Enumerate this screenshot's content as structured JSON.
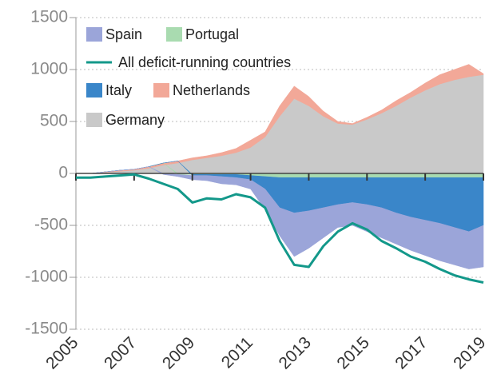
{
  "chart_data": {
    "type": "area",
    "x": [
      2005,
      2005.5,
      2006,
      2006.5,
      2007,
      2007.5,
      2008,
      2008.5,
      2009,
      2009.5,
      2010,
      2010.5,
      2011,
      2011.5,
      2012,
      2012.5,
      2013,
      2013.5,
      2014,
      2014.5,
      2015,
      2015.5,
      2016,
      2016.5,
      2017,
      2017.5,
      2018,
      2018.5,
      2019
    ],
    "series": [
      {
        "name": "Germany",
        "color": "#c9c9c9",
        "type": "area",
        "values": [
          0,
          0,
          10,
          20,
          30,
          50,
          80,
          100,
          130,
          150,
          170,
          200,
          250,
          350,
          550,
          720,
          650,
          550,
          480,
          470,
          520,
          580,
          650,
          730,
          800,
          860,
          900,
          930,
          950
        ]
      },
      {
        "name": "Netherlands",
        "color": "#f2a898",
        "type": "area",
        "values": [
          0,
          0,
          5,
          10,
          10,
          15,
          20,
          20,
          20,
          20,
          30,
          40,
          70,
          50,
          100,
          120,
          90,
          50,
          20,
          10,
          20,
          30,
          50,
          50,
          70,
          90,
          100,
          120,
          10
        ]
      },
      {
        "name": "Portugal",
        "color": "#a9dbb0",
        "type": "area",
        "values": [
          0,
          0,
          0,
          0,
          0,
          0,
          0,
          -10,
          -10,
          -10,
          -10,
          -10,
          -20,
          -30,
          -40,
          -40,
          -40,
          -40,
          -40,
          -40,
          -40,
          -40,
          -40,
          -40,
          -40,
          -40,
          -40,
          -40,
          -40
        ]
      },
      {
        "name": "Italy",
        "color": "#3a86c9",
        "type": "area",
        "values": [
          0,
          0,
          0,
          0,
          0,
          0,
          0,
          0,
          -10,
          -10,
          -20,
          -30,
          -40,
          -120,
          -290,
          -340,
          -320,
          -290,
          -260,
          -240,
          -260,
          -290,
          -340,
          -380,
          -410,
          -440,
          -480,
          -520,
          -460
        ]
      },
      {
        "name": "Spain",
        "color": "#9ba5d9",
        "type": "area",
        "values": [
          0,
          0,
          0,
          0,
          0,
          0,
          -10,
          -20,
          -40,
          -50,
          -70,
          -70,
          -90,
          -200,
          -270,
          -420,
          -360,
          -290,
          -220,
          -220,
          -260,
          -290,
          -300,
          -320,
          -340,
          -360,
          -360,
          -360,
          -400
        ]
      },
      {
        "name": "All deficit-running countries",
        "color": "#13988a",
        "type": "line",
        "values": [
          -40,
          -40,
          -30,
          -20,
          -10,
          -50,
          -100,
          -150,
          -280,
          -240,
          -250,
          -200,
          -230,
          -330,
          -650,
          -880,
          -900,
          -700,
          -560,
          -480,
          -540,
          -650,
          -720,
          -800,
          -850,
          -920,
          -980,
          -1020,
          -1050
        ]
      }
    ],
    "xlim": [
      2005,
      2019
    ],
    "xticks": [
      2005,
      2007,
      2009,
      2011,
      2013,
      2015,
      2017,
      2019
    ],
    "ylim": [
      -1500,
      1500
    ],
    "yticks": [
      -1500,
      -1000,
      -500,
      0,
      500,
      1000,
      1500
    ],
    "grid": true,
    "legend": "upper left"
  }
}
